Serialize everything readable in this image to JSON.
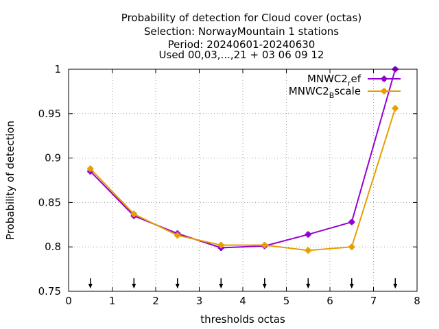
{
  "chart_data": {
    "type": "line",
    "title_lines": [
      "Probability of detection  for Cloud cover (octas)",
      "Selection: NorwayMountain      1 stations",
      "Period: 20240601-20240630",
      "Used 00,03,...,21 + 03 06 09 12"
    ],
    "xlabel": "thresholds octas",
    "ylabel": "Probability of detection",
    "xlim": [
      0,
      8
    ],
    "ylim": [
      0.75,
      1.0
    ],
    "x_ticks": [
      0,
      1,
      2,
      3,
      4,
      5,
      6,
      7,
      8
    ],
    "x_tick_labels": [
      "0",
      "1",
      "2",
      "3",
      "4",
      "5",
      "6",
      "7",
      "8"
    ],
    "y_ticks": [
      0.75,
      0.8,
      0.85,
      0.9,
      0.95,
      1.0
    ],
    "y_tick_labels": [
      "0.75",
      "0.8",
      "0.85",
      "0.9",
      "0.95",
      "1"
    ],
    "grid": true,
    "legend_position": "top-right",
    "arrow_markers_x": [
      0.5,
      1.5,
      2.5,
      3.5,
      4.5,
      5.5,
      6.5,
      7.5
    ],
    "series": [
      {
        "name": "MNWC2_ref",
        "legend_base": "MNWC2",
        "legend_sub": "r",
        "legend_rest": "ef",
        "color": "#9400d3",
        "x": [
          0.5,
          1.5,
          2.5,
          3.5,
          4.5,
          5.5,
          6.5,
          7.5
        ],
        "values": [
          0.885,
          0.835,
          0.815,
          0.799,
          0.801,
          0.814,
          0.828,
          1.0
        ]
      },
      {
        "name": "MNWC2_Bscale",
        "legend_base": "MNWC2",
        "legend_sub": "B",
        "legend_rest": "scale",
        "color": "#e69f00",
        "x": [
          0.5,
          1.5,
          2.5,
          3.5,
          4.5,
          5.5,
          6.5,
          7.5
        ],
        "values": [
          0.888,
          0.837,
          0.813,
          0.802,
          0.802,
          0.796,
          0.8,
          0.956
        ]
      }
    ]
  }
}
